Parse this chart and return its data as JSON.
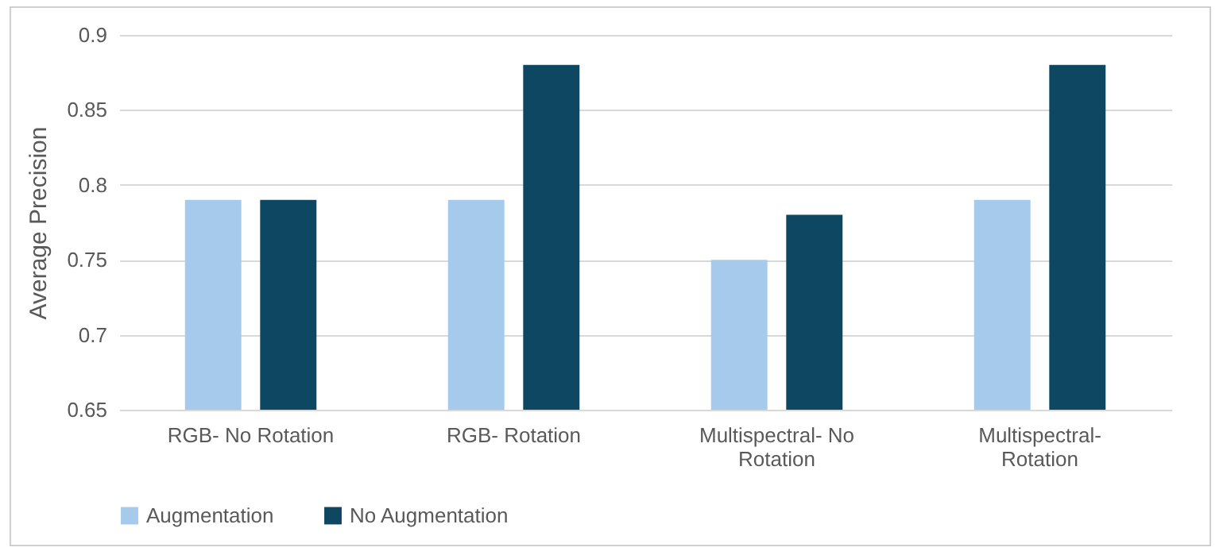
{
  "chart_data": {
    "type": "bar",
    "ylabel": "Average Precision",
    "categories": [
      "RGB- No Rotation",
      "RGB-  Rotation",
      "Multispectral- No Rotation",
      "Multispectral- Rotation"
    ],
    "series": [
      {
        "name": "Augmentation",
        "color": "#a6caec",
        "values": [
          0.79,
          0.79,
          0.75,
          0.79
        ]
      },
      {
        "name": "No Augmentation",
        "color": "#0e4761",
        "values": [
          0.79,
          0.88,
          0.78,
          0.88
        ]
      }
    ],
    "ylim": [
      0.65,
      0.9
    ],
    "yticks": [
      0.65,
      0.7,
      0.75,
      0.8,
      0.85,
      0.9
    ],
    "grid": "y",
    "legend": "bottom"
  }
}
